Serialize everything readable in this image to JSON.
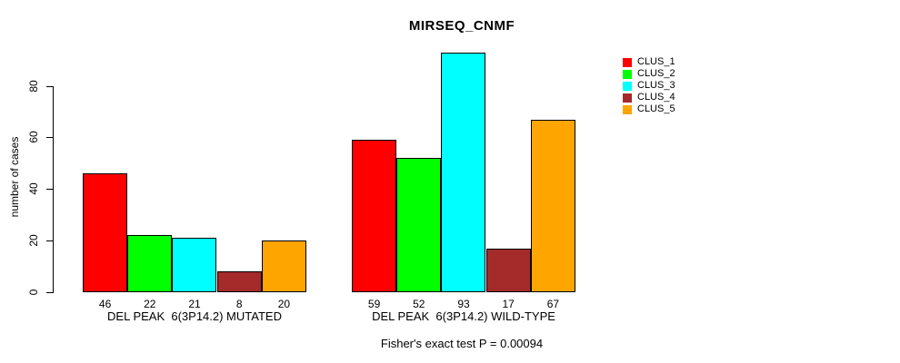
{
  "chart_data": {
    "type": "bar",
    "title": "MIRSEQ_CNMF",
    "subtitle": "Fisher's exact test P = 0.00094",
    "ylabel": "number of cases",
    "xlabel": "",
    "yticks": [
      0,
      20,
      40,
      60,
      80
    ],
    "ylim": [
      0,
      93
    ],
    "grid": false,
    "legend_position": "top-right",
    "bar_value_labels": true,
    "categories": [
      "DEL PEAK  6(3P14.2) MUTATED",
      "DEL PEAK  6(3P14.2) WILD-TYPE"
    ],
    "series": [
      {
        "name": "CLUS_1",
        "color": "#FF0000",
        "values": [
          46,
          59
        ]
      },
      {
        "name": "CLUS_2",
        "color": "#00FF00",
        "values": [
          22,
          52
        ]
      },
      {
        "name": "CLUS_3",
        "color": "#00FFFF",
        "values": [
          21,
          93
        ]
      },
      {
        "name": "CLUS_4",
        "color": "#A52A2A",
        "values": [
          8,
          17
        ]
      },
      {
        "name": "CLUS_5",
        "color": "#FFA500",
        "values": [
          20,
          67
        ]
      }
    ]
  },
  "legend": {
    "items": [
      {
        "label": "CLUS_1",
        "color": "#FF0000"
      },
      {
        "label": "CLUS_2",
        "color": "#00FF00"
      },
      {
        "label": "CLUS_3",
        "color": "#00FFFF"
      },
      {
        "label": "CLUS_4",
        "color": "#A52A2A"
      },
      {
        "label": "CLUS_5",
        "color": "#FFA500"
      }
    ]
  }
}
